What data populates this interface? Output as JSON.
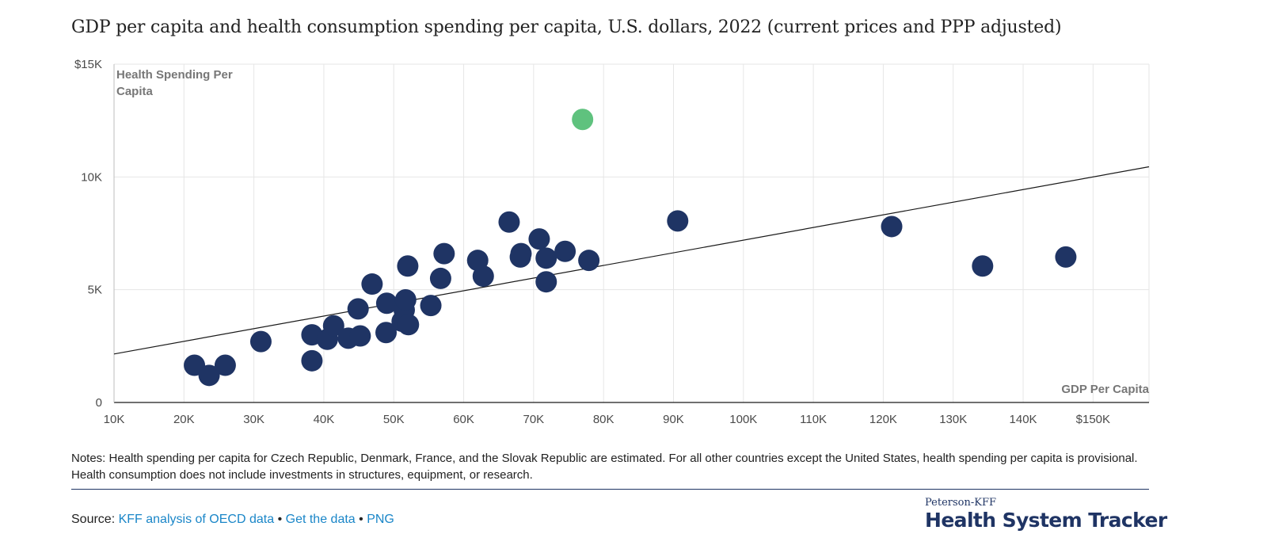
{
  "title": "GDP per capita and health consumption spending per capita, U.S. dollars, 2022 (current prices and PPP adjusted)",
  "chart_data": {
    "type": "scatter",
    "xlabel": "GDP Per Capita",
    "ylabel_lines": [
      "Health Spending Per",
      "Capita"
    ],
    "xlim": [
      10000,
      158000
    ],
    "ylim": [
      0,
      15000
    ],
    "x_ticks": [
      {
        "value": 10000,
        "label": "10K"
      },
      {
        "value": 20000,
        "label": "20K"
      },
      {
        "value": 30000,
        "label": "30K"
      },
      {
        "value": 40000,
        "label": "40K"
      },
      {
        "value": 50000,
        "label": "50K"
      },
      {
        "value": 60000,
        "label": "60K"
      },
      {
        "value": 70000,
        "label": "70K"
      },
      {
        "value": 80000,
        "label": "80K"
      },
      {
        "value": 90000,
        "label": "90K"
      },
      {
        "value": 100000,
        "label": "100K"
      },
      {
        "value": 110000,
        "label": "110K"
      },
      {
        "value": 120000,
        "label": "120K"
      },
      {
        "value": 130000,
        "label": "130K"
      },
      {
        "value": 140000,
        "label": "140K"
      },
      {
        "value": 150000,
        "label": "$150K"
      }
    ],
    "y_ticks": [
      {
        "value": 0,
        "label": "0"
      },
      {
        "value": 5000,
        "label": "5K"
      },
      {
        "value": 10000,
        "label": "10K"
      },
      {
        "value": 15000,
        "label": "$15K"
      }
    ],
    "grid": true,
    "colors": {
      "point": "#1f3464",
      "highlight": "#5fc27e",
      "trend": "#1a1a1a",
      "grid": "#e6e6e6"
    },
    "trend_line": {
      "x": [
        10000,
        158000
      ],
      "y": [
        2150,
        10450
      ]
    },
    "points": [
      {
        "x": 21500,
        "y": 1650
      },
      {
        "x": 23600,
        "y": 1200
      },
      {
        "x": 25900,
        "y": 1650
      },
      {
        "x": 31000,
        "y": 2700
      },
      {
        "x": 38300,
        "y": 1850
      },
      {
        "x": 38300,
        "y": 3000
      },
      {
        "x": 40500,
        "y": 2800
      },
      {
        "x": 41400,
        "y": 3400
      },
      {
        "x": 43500,
        "y": 2850
      },
      {
        "x": 45200,
        "y": 2950
      },
      {
        "x": 44900,
        "y": 4150
      },
      {
        "x": 46900,
        "y": 5250
      },
      {
        "x": 48900,
        "y": 3100
      },
      {
        "x": 49000,
        "y": 4400
      },
      {
        "x": 51200,
        "y": 3600
      },
      {
        "x": 51500,
        "y": 4100
      },
      {
        "x": 51700,
        "y": 4550
      },
      {
        "x": 52100,
        "y": 3450
      },
      {
        "x": 52000,
        "y": 6050
      },
      {
        "x": 55300,
        "y": 4300
      },
      {
        "x": 56700,
        "y": 5500
      },
      {
        "x": 57200,
        "y": 6600
      },
      {
        "x": 62000,
        "y": 6300
      },
      {
        "x": 62800,
        "y": 5600
      },
      {
        "x": 66500,
        "y": 8000
      },
      {
        "x": 68100,
        "y": 6450
      },
      {
        "x": 68200,
        "y": 6600
      },
      {
        "x": 70800,
        "y": 7250
      },
      {
        "x": 71800,
        "y": 5350
      },
      {
        "x": 71800,
        "y": 6400
      },
      {
        "x": 74500,
        "y": 6700
      },
      {
        "x": 77900,
        "y": 6300
      },
      {
        "x": 90600,
        "y": 8050
      },
      {
        "x": 121200,
        "y": 7800
      },
      {
        "x": 134200,
        "y": 6050
      },
      {
        "x": 146100,
        "y": 6450
      },
      {
        "x": 77000,
        "y": 12550,
        "highlight": true
      }
    ]
  },
  "notes": "Notes: Health spending per capita for Czech Republic, Denmark, France, and the Slovak Republic are estimated. For all other countries except the United States, health spending per capita is provisional. Health consumption does not include investments in structures, equipment, or research.",
  "source": {
    "label": "Source:",
    "links": [
      "KFF analysis of OECD data",
      "Get the data",
      "PNG"
    ],
    "separator": "•"
  },
  "brand": {
    "top": "Peterson-KFF",
    "main": "Health System Tracker"
  }
}
